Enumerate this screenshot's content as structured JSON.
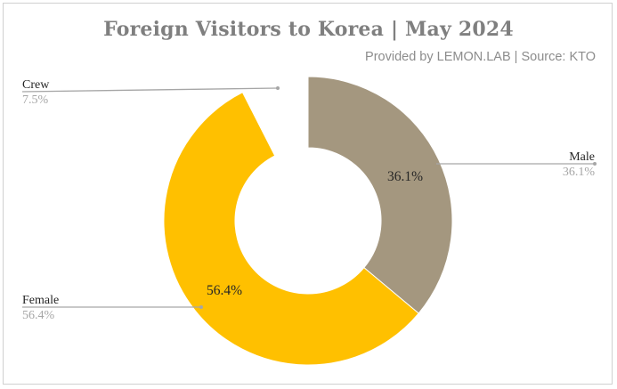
{
  "title": "Foreign Visitors to Korea | May 2024",
  "subtitle": "Provided by LEMON.LAB | Source: KTO",
  "chart_data": {
    "type": "pie",
    "title": "Foreign Visitors to Korea | May 2024",
    "subtitle": "Provided by LEMON.LAB | Source: KTO",
    "categories": [
      "Male",
      "Female",
      "Crew"
    ],
    "values": [
      36.1,
      56.4,
      7.5
    ],
    "labels": [
      "36.1%",
      "56.4%",
      "7.5%"
    ],
    "colors": [
      "#a4977f",
      "#ffc000",
      "#ffffff"
    ],
    "hole": "donut",
    "start": "12 o'clock, clockwise",
    "leader_line_color": "#a6a6a6"
  }
}
